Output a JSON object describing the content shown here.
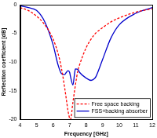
{
  "chart_data": {
    "type": "line",
    "x_label": "Frequency [GHz]",
    "y_label": "Reflection coefficient [dB]",
    "x": [
      4,
      4.5,
      5,
      5.5,
      6,
      6.3,
      6.5,
      6.7,
      6.8,
      6.9,
      7,
      7.05,
      7.2,
      7.3,
      7.35,
      7.5,
      7.6,
      8,
      8.3,
      8.5,
      8.6,
      9,
      9.5,
      10,
      11,
      12
    ],
    "series": [
      {
        "name": "Free space backing",
        "color": "#ff0000",
        "line_style": "dashed",
        "values": [
          -0.5,
          -1,
          -2,
          -3.5,
          -6,
          -8.5,
          -11,
          -14.5,
          -16.5,
          -18.5,
          -19.8,
          -20,
          -17,
          -15,
          -14,
          -11.5,
          -10.5,
          -7.5,
          -6,
          -5.2,
          -4.9,
          -4,
          -3,
          -2.3,
          -1.3,
          -0.7
        ]
      },
      {
        "name": "FSS+backing absorber",
        "color": "#0000cc",
        "line_style": "solid",
        "values": [
          -0.2,
          -0.5,
          -1,
          -3,
          -7,
          -10.5,
          -12,
          -12.2,
          -11.8,
          -11.5,
          -11.8,
          -12.5,
          -14,
          -12,
          -11.2,
          -11.3,
          -11.8,
          -12.8,
          -13.2,
          -12.9,
          -12.5,
          -9.5,
          -5.8,
          -3.5,
          -1.5,
          -0.5
        ]
      }
    ],
    "xlim": [
      4,
      12
    ],
    "xticks": [
      4,
      5,
      6,
      7,
      8,
      9,
      10,
      11,
      12
    ],
    "ylim": [
      -20,
      0
    ],
    "yticks": [
      -20,
      -15,
      -10,
      -5,
      0
    ],
    "grid": false,
    "legend": "lower right"
  }
}
